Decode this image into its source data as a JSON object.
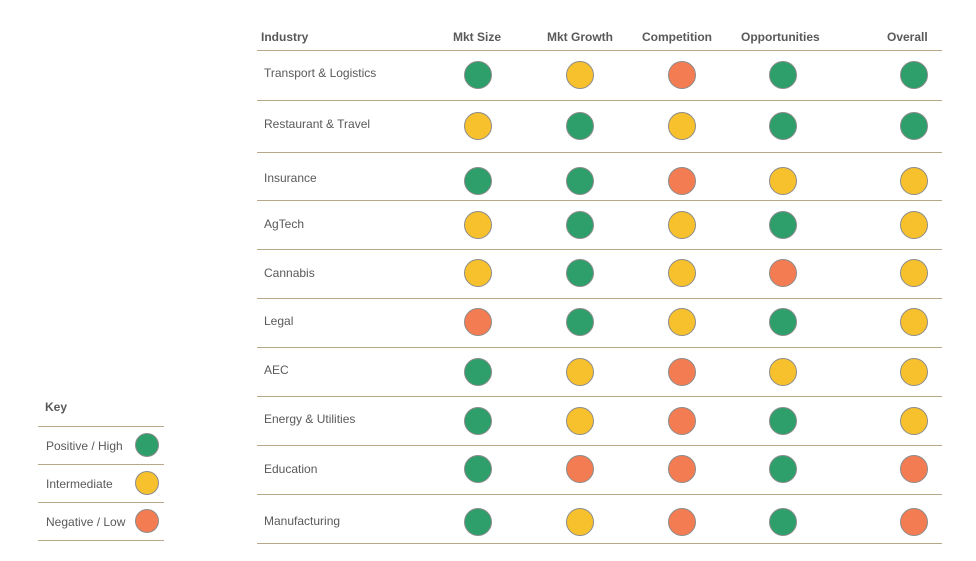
{
  "colors": {
    "positive": "#2e9e6a",
    "intermediate": "#f6c12c",
    "negative": "#f47c52"
  },
  "table": {
    "headers": [
      "Industry",
      "Mkt Size",
      "Mkt Growth",
      "Competition",
      "Opportunities",
      "Overall"
    ],
    "rows": [
      {
        "name": "Transport & Logistics",
        "ratings": [
          "positive",
          "intermediate",
          "negative",
          "positive",
          "positive"
        ]
      },
      {
        "name": "Restaurant & Travel",
        "ratings": [
          "intermediate",
          "positive",
          "intermediate",
          "positive",
          "positive"
        ]
      },
      {
        "name": "Insurance",
        "ratings": [
          "positive",
          "positive",
          "negative",
          "intermediate",
          "intermediate"
        ]
      },
      {
        "name": "AgTech",
        "ratings": [
          "intermediate",
          "positive",
          "intermediate",
          "positive",
          "intermediate"
        ]
      },
      {
        "name": "Cannabis",
        "ratings": [
          "intermediate",
          "positive",
          "intermediate",
          "negative",
          "intermediate"
        ]
      },
      {
        "name": "Legal",
        "ratings": [
          "negative",
          "positive",
          "intermediate",
          "positive",
          "intermediate"
        ]
      },
      {
        "name": "AEC",
        "ratings": [
          "positive",
          "intermediate",
          "negative",
          "intermediate",
          "intermediate"
        ]
      },
      {
        "name": "Energy & Utilities",
        "ratings": [
          "positive",
          "intermediate",
          "negative",
          "positive",
          "intermediate"
        ]
      },
      {
        "name": "Education",
        "ratings": [
          "positive",
          "negative",
          "negative",
          "positive",
          "negative"
        ]
      },
      {
        "name": "Manufacturing",
        "ratings": [
          "positive",
          "intermediate",
          "negative",
          "positive",
          "negative"
        ]
      }
    ]
  },
  "key": {
    "title": "Key",
    "items": [
      {
        "label": "Positive / High",
        "rating": "positive"
      },
      {
        "label": "Intermediate",
        "rating": "intermediate"
      },
      {
        "label": "Negative / Low",
        "rating": "negative"
      }
    ]
  }
}
